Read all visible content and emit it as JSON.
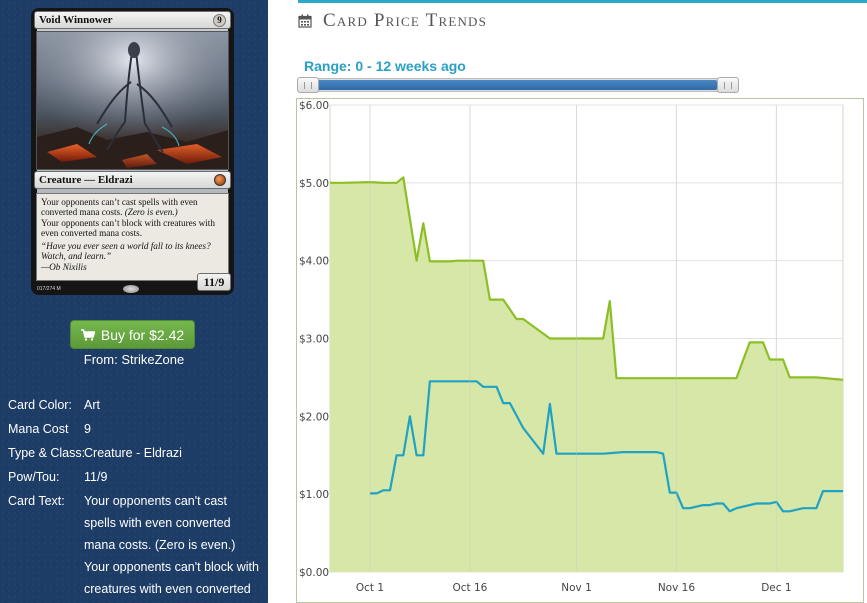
{
  "card": {
    "name": "Void Winnower",
    "mana_cost": "9",
    "type_line": "Creature — Eldrazi",
    "rules_1": "Your opponents can’t cast spells with even converted mana costs.",
    "rules_1_italic": "(Zero is even.)",
    "rules_2": "Your opponents can’t block with creatures with even converted mana costs.",
    "flavor": "“Have you ever seen a world fall to its knees? Watch, and learn.”",
    "flavor_attr": "—Ob Nixilis",
    "pt": "11/9",
    "collector": "017/274 M"
  },
  "buy": {
    "label": "Buy for $2.42",
    "from": "From: StrikeZone"
  },
  "details": {
    "color_label": "Card Color:",
    "color_value": "Art",
    "mana_label": "Mana Cost",
    "mana_value": "9",
    "type_label": "Type & Class:",
    "type_value": "Creature - Eldrazi",
    "pt_label": "Pow/Tou:",
    "pt_value": "11/9",
    "text_label": "Card Text:",
    "text_value": "Your opponents can't cast spells with even converted mana costs. (Zero is even.) Your opponents can't block with creatures with even converted"
  },
  "price": {
    "title": "Card Price Trends",
    "range_label": "Range: 0 - 12 weeks ago"
  },
  "colors": {
    "left_bg": "#1d3c66",
    "accent_blue": "#2aa0c7",
    "green_line": "#8cbf26",
    "green_fill": "#d6e7a8",
    "blue_line": "#1ea3c4",
    "buy_green": "#6aab44"
  },
  "chart_data": {
    "type": "line",
    "ylim": [
      0,
      6
    ],
    "yticks": [
      "$0.00",
      "$1.00",
      "$2.00",
      "$3.00",
      "$4.00",
      "$5.00",
      "$6.00"
    ],
    "ytick_values": [
      0,
      1,
      2,
      3,
      4,
      5,
      6
    ],
    "xticks": [
      "Oct 1",
      "Oct 16",
      "Nov 1",
      "Nov 16",
      "Dec 1"
    ],
    "xtick_days": [
      0,
      15,
      31,
      46,
      61
    ],
    "xlim_days": [
      -6,
      71
    ],
    "grid": true,
    "series": [
      {
        "fill": true,
        "points": [
          [
            -6,
            5.0
          ],
          [
            -4,
            5.0
          ],
          [
            0,
            5.01
          ],
          [
            2,
            5.0
          ],
          [
            4,
            5.0
          ],
          [
            5,
            5.07
          ],
          [
            7,
            4.0
          ],
          [
            8,
            4.48
          ],
          [
            9,
            3.99
          ],
          [
            12,
            3.99
          ],
          [
            13,
            4.0
          ],
          [
            17,
            4.0
          ],
          [
            18,
            3.5
          ],
          [
            20,
            3.5
          ],
          [
            22,
            3.25
          ],
          [
            23,
            3.25
          ],
          [
            27,
            3.0
          ],
          [
            32,
            3.0
          ],
          [
            35,
            3.0
          ],
          [
            36,
            3.48
          ],
          [
            37,
            2.49
          ],
          [
            42,
            2.49
          ],
          [
            46,
            2.49
          ],
          [
            55,
            2.49
          ],
          [
            57,
            2.95
          ],
          [
            59,
            2.95
          ],
          [
            60,
            2.73
          ],
          [
            62,
            2.73
          ],
          [
            63,
            2.5
          ],
          [
            67,
            2.5
          ],
          [
            71,
            2.47
          ]
        ]
      },
      {
        "fill": false,
        "points": [
          [
            0,
            1.01
          ],
          [
            1,
            1.01
          ],
          [
            2,
            1.05
          ],
          [
            3,
            1.05
          ],
          [
            4,
            1.5
          ],
          [
            5,
            1.5
          ],
          [
            6,
            2.0
          ],
          [
            7,
            1.5
          ],
          [
            8,
            1.5
          ],
          [
            9,
            2.45
          ],
          [
            11,
            2.45
          ],
          [
            15,
            2.45
          ],
          [
            16,
            2.45
          ],
          [
            17,
            2.38
          ],
          [
            19,
            2.38
          ],
          [
            20,
            2.17
          ],
          [
            21,
            2.17
          ],
          [
            23,
            1.85
          ],
          [
            26,
            1.52
          ],
          [
            27,
            2.16
          ],
          [
            28,
            1.52
          ],
          [
            35,
            1.52
          ],
          [
            38,
            1.54
          ],
          [
            43,
            1.54
          ],
          [
            44,
            1.52
          ],
          [
            45,
            1.02
          ],
          [
            46,
            1.02
          ],
          [
            47,
            0.82
          ],
          [
            48,
            0.82
          ],
          [
            50,
            0.86
          ],
          [
            51,
            0.86
          ],
          [
            52,
            0.88
          ],
          [
            53,
            0.88
          ],
          [
            54,
            0.78
          ],
          [
            55,
            0.82
          ],
          [
            58,
            0.88
          ],
          [
            60,
            0.88
          ],
          [
            61,
            0.9
          ],
          [
            62,
            0.78
          ],
          [
            63,
            0.78
          ],
          [
            65,
            0.82
          ],
          [
            67,
            0.82
          ],
          [
            68,
            1.04
          ],
          [
            71,
            1.04
          ]
        ]
      }
    ]
  }
}
